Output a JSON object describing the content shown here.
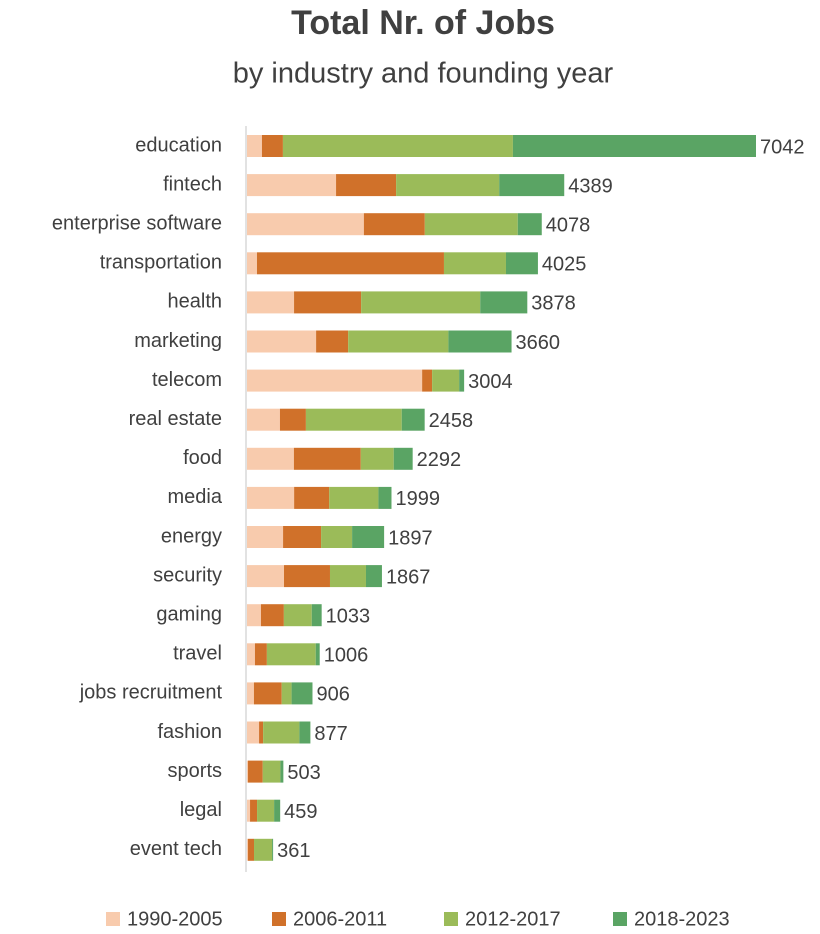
{
  "chart_data": {
    "type": "stacked-bar-horizontal",
    "title": "Total Nr. of Jobs",
    "subtitle": "by industry and founding year",
    "categories": [
      "education",
      "fintech",
      "enterprise software",
      "transportation",
      "health",
      "marketing",
      "telecom",
      "real estate",
      "food",
      "media",
      "energy",
      "security",
      "gaming",
      "travel",
      "jobs recruitment",
      "fashion",
      "sports",
      "legal",
      "event tech"
    ],
    "series": [
      {
        "name": "1990-2005",
        "color": "#f8cbad",
        "values": [
          207,
          1232,
          1617,
          138,
          651,
          956,
          2423,
          456,
          649,
          652,
          499,
          512,
          193,
          110,
          96,
          167,
          14,
          42,
          14
        ]
      },
      {
        "name": "2006-2011",
        "color": "#d0712a",
        "values": [
          290,
          831,
          843,
          2587,
          928,
          444,
          138,
          359,
          925,
          486,
          526,
          636,
          317,
          165,
          384,
          56,
          204,
          97,
          83
        ]
      },
      {
        "name": "2012-2017",
        "color": "#9bbb59",
        "values": [
          3182,
          1426,
          1286,
          858,
          1648,
          1386,
          374,
          1326,
          456,
          680,
          429,
          498,
          386,
          676,
          137,
          501,
          244,
          236,
          250
        ]
      },
      {
        "name": "2018-2023",
        "color": "#5aa464",
        "values": [
          3363,
          900,
          332,
          442,
          651,
          874,
          69,
          317,
          262,
          181,
          443,
          221,
          137,
          55,
          289,
          153,
          41,
          84,
          14
        ]
      }
    ],
    "totals": [
      7042,
      4389,
      4078,
      4025,
      3878,
      3660,
      3004,
      2458,
      2292,
      1999,
      1897,
      1867,
      1033,
      1006,
      906,
      877,
      503,
      459,
      361
    ],
    "legend": "bottom"
  }
}
